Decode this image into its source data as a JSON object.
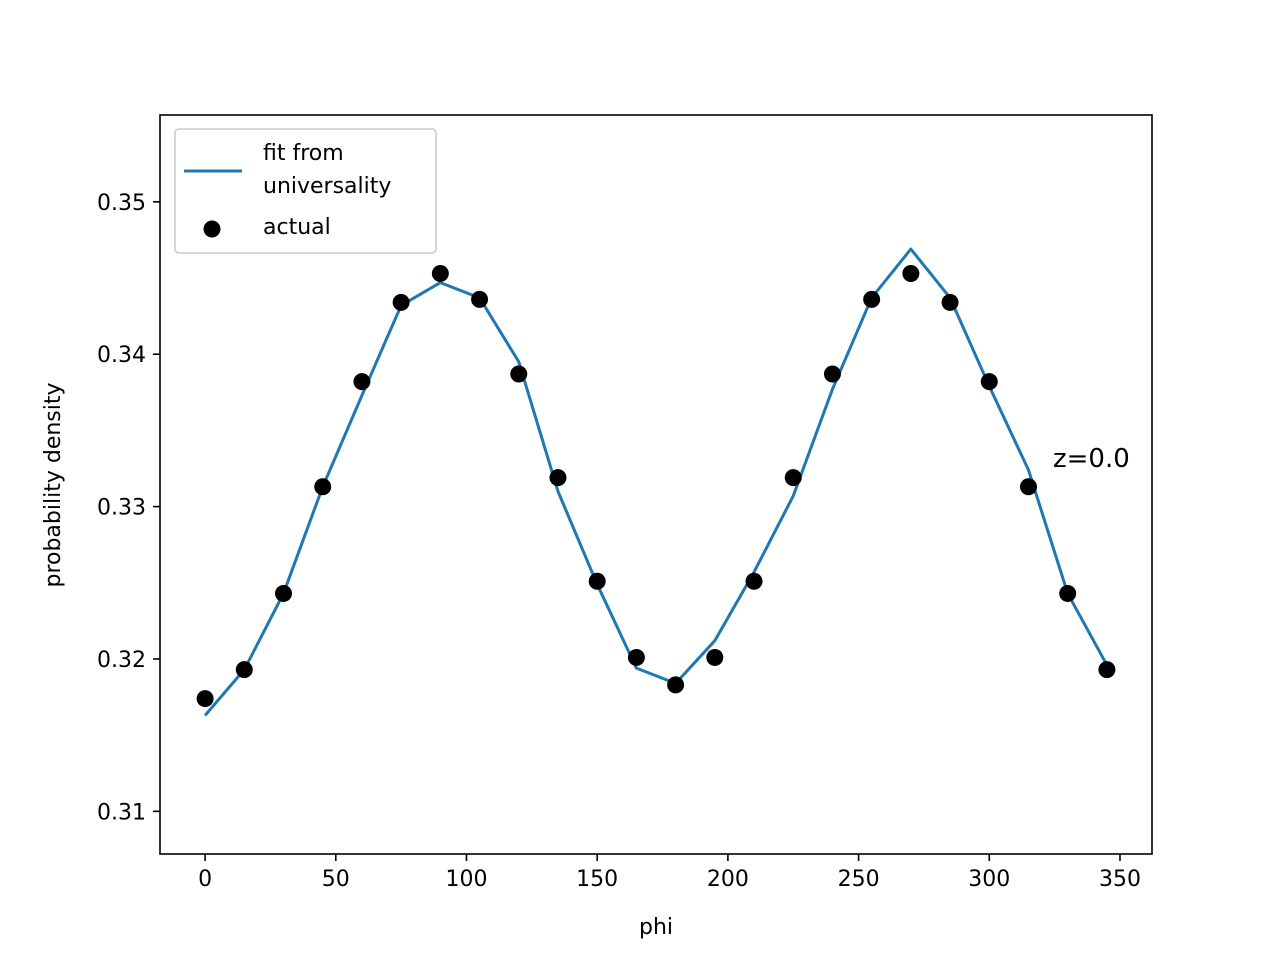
{
  "chart_data": {
    "type": "scatter",
    "xlabel": "phi",
    "ylabel": "probability density",
    "xlim": [
      -17.25,
      362.25
    ],
    "ylim": [
      0.3072,
      0.3557
    ],
    "xticks": [
      0,
      50,
      100,
      150,
      200,
      250,
      300,
      350
    ],
    "yticks": [
      0.31,
      0.32,
      0.33,
      0.34,
      0.35
    ],
    "xtick_labels": [
      "0",
      "50",
      "100",
      "150",
      "200",
      "250",
      "300",
      "350"
    ],
    "ytick_labels": [
      "0.31",
      "0.32",
      "0.33",
      "0.34",
      "0.35"
    ],
    "grid": false,
    "legend": {
      "position": "top-left",
      "fit_label_line1": "fit from",
      "fit_label_line2": "universality",
      "actual_label": "actual"
    },
    "annotation": "z=0.0",
    "series": [
      {
        "name": "fit from universality",
        "kind": "line",
        "color": "#1f77b4",
        "x": [
          0,
          15,
          30,
          45,
          60,
          75,
          90,
          105,
          120,
          135,
          150,
          165,
          180,
          195,
          210,
          225,
          240,
          255,
          270,
          285,
          300,
          315,
          330,
          345
        ],
        "y": [
          0.3163,
          0.3193,
          0.3243,
          0.3313,
          0.3373,
          0.3432,
          0.3447,
          0.3437,
          0.3395,
          0.331,
          0.3249,
          0.3194,
          0.3184,
          0.3212,
          0.3257,
          0.3307,
          0.3377,
          0.3437,
          0.3469,
          0.3437,
          0.3379,
          0.3324,
          0.3243,
          0.3196
        ]
      },
      {
        "name": "actual",
        "kind": "scatter",
        "color": "#000000",
        "x": [
          0,
          15,
          30,
          45,
          60,
          75,
          90,
          105,
          120,
          135,
          150,
          165,
          180,
          195,
          210,
          225,
          240,
          255,
          270,
          285,
          300,
          315,
          330,
          345
        ],
        "y": [
          0.3174,
          0.3193,
          0.3243,
          0.3313,
          0.3382,
          0.3434,
          0.3453,
          0.3436,
          0.3387,
          0.3319,
          0.3251,
          0.3201,
          0.3183,
          0.3201,
          0.3251,
          0.3319,
          0.3387,
          0.3436,
          0.3453,
          0.3434,
          0.3382,
          0.3313,
          0.3243,
          0.3193
        ]
      }
    ]
  }
}
